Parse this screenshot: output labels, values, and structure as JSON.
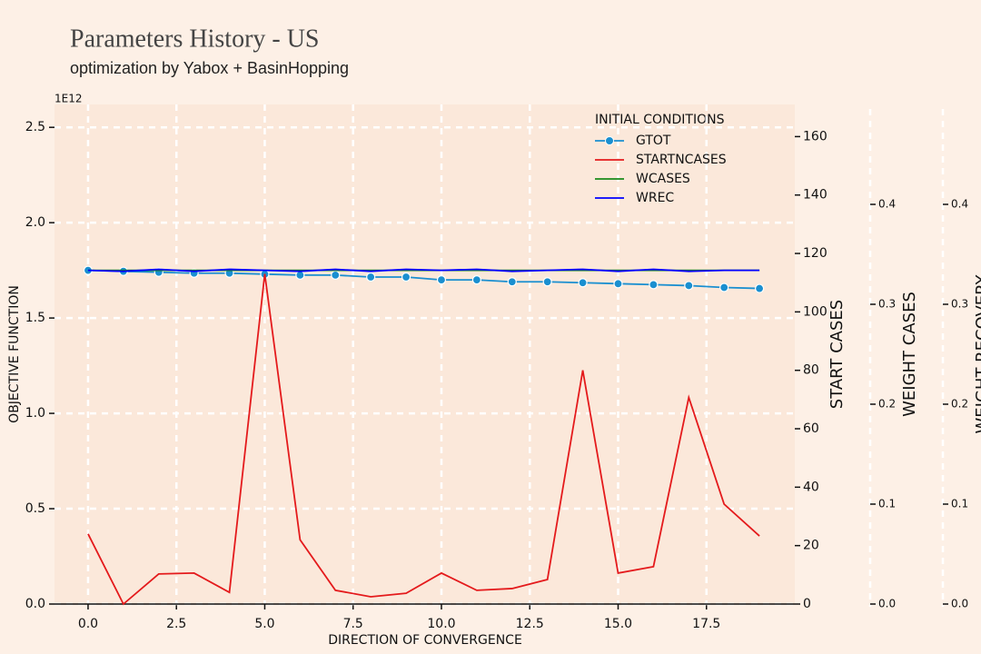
{
  "chart_data": {
    "type": "line",
    "title": "Parameters History - US",
    "subtitle": "optimization by Yabox + BasinHopping",
    "xlabel": "DIRECTION OF CONVERGENCE",
    "ylabel": "OBJECTIVE FUNCTION",
    "y2label": "START CASES",
    "y3label": "WEIGHT CASES",
    "y4label": "WEIGHT RECOVERY",
    "offset_label": "1E12",
    "legend_title": "INITIAL CONDITIONS",
    "legend": "upper right",
    "grid": true,
    "x": [
      0,
      1,
      2,
      3,
      4,
      5,
      6,
      7,
      8,
      9,
      10,
      11,
      12,
      13,
      14,
      15,
      16,
      17,
      18,
      19
    ],
    "xlim": [
      -0.95,
      20.0
    ],
    "xticks": [
      {
        "value": 0,
        "label": "0.0"
      },
      {
        "value": 2.5,
        "label": "2.5"
      },
      {
        "value": 5,
        "label": "5.0"
      },
      {
        "value": 7.5,
        "label": "7.5"
      },
      {
        "value": 10,
        "label": "10.0"
      },
      {
        "value": 12.5,
        "label": "12.5"
      },
      {
        "value": 15,
        "label": "15.0"
      },
      {
        "value": 17.5,
        "label": "17.5"
      }
    ],
    "ylim": [
      0,
      2.62
    ],
    "yticks": [
      {
        "value": 0,
        "label": "0.0"
      },
      {
        "value": 0.5,
        "label": "0.5"
      },
      {
        "value": 1,
        "label": "1.0"
      },
      {
        "value": 1.5,
        "label": "1.5"
      },
      {
        "value": 2,
        "label": "2.0"
      },
      {
        "value": 2.5,
        "label": "2.5"
      }
    ],
    "y2lim": [
      0,
      171
    ],
    "y2ticks": [
      0,
      20,
      40,
      60,
      80,
      100,
      120,
      140,
      160
    ],
    "y3lim": [
      0,
      0.5
    ],
    "y3ticks": [
      {
        "value": 0,
        "label": "0.0"
      },
      0.1,
      0.2,
      0.3,
      0.4
    ],
    "y4lim": [
      0,
      0.5
    ],
    "y4ticks": [
      {
        "value": 0,
        "label": "0.0"
      },
      0.1,
      0.2,
      0.3,
      0.4
    ],
    "series": [
      {
        "name": "GTOT",
        "color": "#1a8fd0",
        "axis": "y",
        "markers": true,
        "values": [
          1.75,
          1.745,
          1.74,
          1.735,
          1.735,
          1.73,
          1.725,
          1.725,
          1.715,
          1.715,
          1.7,
          1.7,
          1.69,
          1.69,
          1.685,
          1.68,
          1.675,
          1.67,
          1.66,
          1.655
        ]
      },
      {
        "name": "STARTNCASES",
        "color": "#e41a1c",
        "axis": "y2",
        "values": [
          24,
          0,
          10.3,
          10.6,
          4,
          113,
          22,
          4.7,
          2.5,
          3.7,
          10.6,
          4.7,
          5.3,
          8.4,
          80,
          10.6,
          12.8,
          70.7,
          34.2,
          23.3
        ]
      },
      {
        "name": "WCASES",
        "color": "#1a8a1a",
        "axis": "y3",
        "values": [
          0.334,
          0.334,
          0.334,
          0.334,
          0.334,
          0.334,
          0.334,
          0.334,
          0.334,
          0.334,
          0.334,
          0.334,
          0.334,
          0.334,
          0.334,
          0.334,
          0.334,
          0.334,
          0.334,
          0.334
        ]
      },
      {
        "name": "WREC",
        "color": "#0000ff",
        "axis": "y4",
        "values": [
          0.334,
          0.333,
          0.335,
          0.333,
          0.335,
          0.334,
          0.333,
          0.335,
          0.333,
          0.335,
          0.334,
          0.335,
          0.333,
          0.334,
          0.335,
          0.333,
          0.335,
          0.333,
          0.334,
          0.334
        ]
      }
    ]
  }
}
